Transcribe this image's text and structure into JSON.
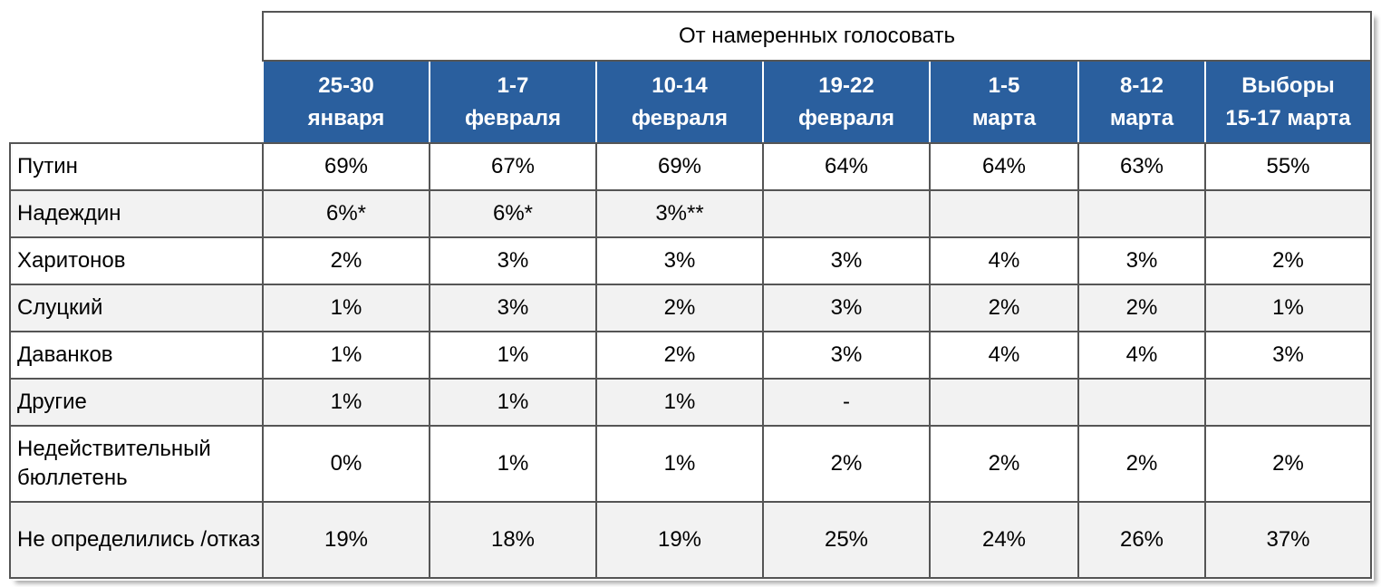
{
  "table": {
    "title": "От намеренных голосовать",
    "columns": [
      [
        "25-30",
        "января"
      ],
      [
        "1-7",
        "февраля"
      ],
      [
        "10-14",
        "февраля"
      ],
      [
        "19-22",
        "февраля"
      ],
      [
        "1-5",
        "марта"
      ],
      [
        "8-12",
        "марта"
      ],
      [
        "Выборы",
        "15-17 марта"
      ]
    ],
    "rows": [
      {
        "label": "Путин",
        "values": [
          "69%",
          "67%",
          "69%",
          "64%",
          "64%",
          "63%",
          "55%"
        ]
      },
      {
        "label": "Надеждин",
        "values": [
          "6%*",
          "6%*",
          "3%**",
          null,
          null,
          null,
          null
        ]
      },
      {
        "label": "Харитонов",
        "values": [
          "2%",
          "3%",
          "3%",
          "3%",
          "4%",
          "3%",
          "2%"
        ]
      },
      {
        "label": "Слуцкий",
        "values": [
          "1%",
          "3%",
          "2%",
          "3%",
          "2%",
          "2%",
          "1%"
        ]
      },
      {
        "label": "Даванков",
        "values": [
          "1%",
          "1%",
          "2%",
          "3%",
          "4%",
          "4%",
          "3%"
        ]
      },
      {
        "label": "Другие",
        "values": [
          "1%",
          "1%",
          "1%",
          "-",
          null,
          null,
          null
        ]
      },
      {
        "label": "Недействительный бюллетень",
        "values": [
          "0%",
          "1%",
          "1%",
          "2%",
          "2%",
          "2%",
          "2%"
        ]
      },
      {
        "label": "Не определились /отказ",
        "values": [
          "19%",
          "18%",
          "19%",
          "25%",
          "24%",
          "26%",
          "37%"
        ]
      }
    ]
  }
}
